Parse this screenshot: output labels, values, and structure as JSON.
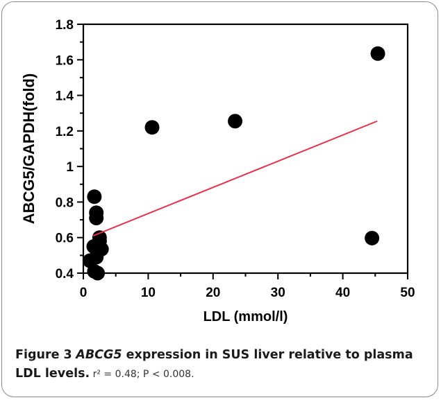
{
  "chart_data": {
    "type": "scatter",
    "xlabel": "LDL (mmol/l)",
    "ylabel": "ABCG5/GAPDH(fold)",
    "xlim": [
      0,
      50
    ],
    "ylim": [
      0.4,
      1.8
    ],
    "x_ticks": [
      "0",
      "10",
      "20",
      "30",
      "40",
      "50"
    ],
    "y_ticks": [
      "0.4",
      "0.6",
      "0.8",
      "1",
      "1.2",
      "1.4",
      "1.6",
      "1.8"
    ],
    "grid": false,
    "points": [
      {
        "x": 1.0,
        "y": 0.47
      },
      {
        "x": 1.7,
        "y": 0.83
      },
      {
        "x": 2.0,
        "y": 0.74
      },
      {
        "x": 2.0,
        "y": 0.71
      },
      {
        "x": 2.5,
        "y": 0.6
      },
      {
        "x": 2.5,
        "y": 0.58
      },
      {
        "x": 1.6,
        "y": 0.55
      },
      {
        "x": 2.8,
        "y": 0.535
      },
      {
        "x": 2.0,
        "y": 0.49
      },
      {
        "x": 1.7,
        "y": 0.41
      },
      {
        "x": 2.2,
        "y": 0.4
      },
      {
        "x": 10.6,
        "y": 1.22
      },
      {
        "x": 23.4,
        "y": 1.255
      },
      {
        "x": 44.5,
        "y": 0.597
      },
      {
        "x": 45.4,
        "y": 1.635
      }
    ],
    "trendline": {
      "x": [
        1.5,
        45.3
      ],
      "y": [
        0.61,
        1.255
      ],
      "color": "#e8304a"
    },
    "point_color": "#000000"
  },
  "caption": {
    "figure_label": "Figure 3",
    "gene": "ABCG5",
    "title_rest": " expression in SUS liver relative to plasma LDL levels.",
    "stats": " r² = 0.48; P < 0.008."
  }
}
